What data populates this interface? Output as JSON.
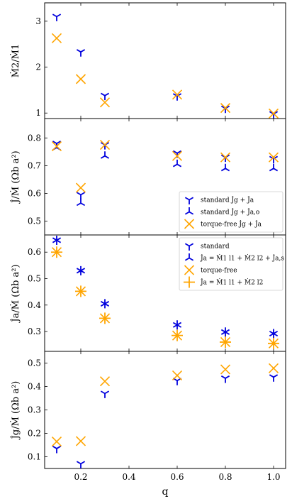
{
  "colors": {
    "blue": "#0000dd",
    "orange": "#ffa500"
  },
  "x_label": "q",
  "x_ticks": [
    0.2,
    0.4,
    0.6,
    0.8,
    1.0
  ],
  "x_tick_labels": [
    "0.2",
    "0.4",
    "0.6",
    "0.8",
    "1.0"
  ],
  "xlim": [
    0.05,
    1.05
  ],
  "chart_data": [
    {
      "type": "scatter",
      "ylabel": "Ṁ2/Ṁ1",
      "ylim": [
        0.88,
        3.4
      ],
      "yticks": [
        1,
        2,
        3
      ],
      "ytick_labels": [
        "1",
        "2",
        "3"
      ],
      "legend": null,
      "series": [
        {
          "name": "",
          "marker": "tri_down",
          "color": "blue",
          "x": [
            0.1,
            0.2,
            0.3,
            0.6,
            0.8,
            1.0
          ],
          "y": [
            3.1,
            2.33,
            1.38,
            1.37,
            1.1,
            0.98
          ]
        },
        {
          "name": "",
          "marker": "x",
          "color": "orange",
          "x": [
            0.1,
            0.2,
            0.3,
            0.6,
            0.8,
            1.0
          ],
          "y": [
            2.63,
            1.74,
            1.23,
            1.4,
            1.11,
            0.99
          ]
        }
      ]
    },
    {
      "type": "scatter",
      "ylabel": "J̇/Ṁ (Ωb a²)",
      "ylim": [
        0.45,
        0.87
      ],
      "yticks": [
        0.5,
        0.6,
        0.7,
        0.8
      ],
      "ytick_labels": [
        "0.5",
        "0.6",
        "0.7",
        "0.8"
      ],
      "legend": "lower-right",
      "series": [
        {
          "name": "standard J̇g + J̇a",
          "marker": "tri_down",
          "color": "blue",
          "x": [
            0.1,
            0.2,
            0.3,
            0.6,
            0.8,
            1.0
          ],
          "y": [
            0.78,
            0.595,
            0.775,
            0.745,
            0.73,
            0.725
          ]
        },
        {
          "name": "standard J̇g + J̇a,o",
          "marker": "tri_up",
          "color": "blue",
          "x": [
            0.1,
            0.2,
            0.3,
            0.6,
            0.8,
            1.0
          ],
          "y": [
            0.765,
            0.565,
            0.735,
            0.705,
            0.69,
            0.69
          ]
        },
        {
          "name": "torque-free J̇g + J̇a",
          "marker": "x",
          "color": "orange",
          "x": [
            0.1,
            0.2,
            0.3,
            0.6,
            0.8,
            1.0
          ],
          "y": [
            0.77,
            0.62,
            0.775,
            0.735,
            0.73,
            0.73
          ]
        }
      ]
    },
    {
      "type": "scatter",
      "ylabel": "J̇a/Ṁ (Ωb a²)",
      "ylim": [
        0.225,
        0.665
      ],
      "yticks": [
        0.3,
        0.4,
        0.5,
        0.6
      ],
      "ytick_labels": [
        "0.3",
        "0.4",
        "0.5",
        "0.6"
      ],
      "legend": "top-right",
      "series": [
        {
          "name": "standard",
          "marker": "tri_down",
          "color": "blue",
          "x": [
            0.1,
            0.2,
            0.3,
            0.6,
            0.8,
            1.0
          ],
          "y": [
            0.645,
            0.53,
            0.405,
            0.325,
            0.298,
            0.292
          ]
        },
        {
          "name": "J̇a = Ṁ1 l1 + Ṁ2 l2 + J̇a,s",
          "marker": "tri_up",
          "color": "blue",
          "x": [
            0.1,
            0.2,
            0.3,
            0.6,
            0.8,
            1.0
          ],
          "y": [
            0.645,
            0.53,
            0.405,
            0.325,
            0.298,
            0.292
          ]
        },
        {
          "name": "torque-free",
          "marker": "x",
          "color": "orange",
          "x": [
            0.1,
            0.2,
            0.3,
            0.6,
            0.8,
            1.0
          ],
          "y": [
            0.6,
            0.452,
            0.35,
            0.285,
            0.26,
            0.255
          ]
        },
        {
          "name": "J̇a = Ṁ1 l1 + Ṁ2 l2",
          "marker": "plus",
          "color": "orange",
          "x": [
            0.1,
            0.2,
            0.3,
            0.6,
            0.8,
            1.0
          ],
          "y": [
            0.6,
            0.452,
            0.35,
            0.285,
            0.26,
            0.255
          ]
        }
      ]
    },
    {
      "type": "scatter",
      "ylabel": "J̇g/Ṁ (Ωb a²)",
      "ylim": [
        0.05,
        0.55
      ],
      "yticks": [
        0.1,
        0.2,
        0.3,
        0.4,
        0.5
      ],
      "ytick_labels": [
        "0.1",
        "0.2",
        "0.3",
        "0.4",
        "0.5"
      ],
      "legend": null,
      "series": [
        {
          "name": "",
          "marker": "tri_down",
          "color": "blue",
          "x": [
            0.1,
            0.2,
            0.3,
            0.6,
            0.8,
            1.0
          ],
          "y": [
            0.135,
            0.07,
            0.37,
            0.425,
            0.435,
            0.44
          ]
        },
        {
          "name": "",
          "marker": "x",
          "color": "orange",
          "x": [
            0.1,
            0.2,
            0.3,
            0.6,
            0.8,
            1.0
          ],
          "y": [
            0.165,
            0.167,
            0.422,
            0.447,
            0.473,
            0.478
          ]
        }
      ]
    }
  ]
}
